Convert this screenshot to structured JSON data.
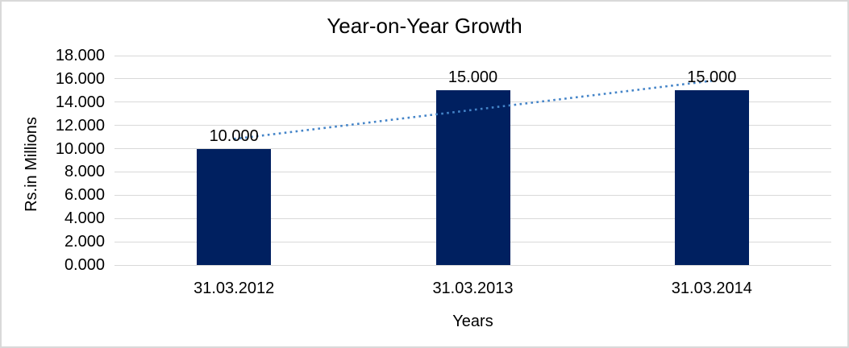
{
  "chart_data": {
    "type": "bar",
    "title": "Year-on-Year Growth",
    "categories": [
      "31.03.2012",
      "31.03.2013",
      "31.03.2014"
    ],
    "values": [
      10,
      15,
      15
    ],
    "data_labels": [
      "10.000",
      "15.000",
      "15.000"
    ],
    "xlabel": "Years",
    "ylabel": "Rs.in Millions",
    "ylim": [
      0,
      18
    ],
    "ytick_step": 2,
    "ytick_labels": [
      "0.000",
      "2.000",
      "4.000",
      "6.000",
      "8.000",
      "10.000",
      "12.000",
      "14.000",
      "16.000",
      "18.000"
    ],
    "grid": true,
    "legend": "none",
    "trendline": {
      "type": "linear",
      "style": "dotted",
      "values": [
        10.833,
        13.333,
        15.833
      ]
    },
    "colors": {
      "bar": "#002060",
      "trendline": "#4484C8",
      "gridline": "#d9d9d9",
      "frame": "#d9d9d9",
      "text": "#000000"
    }
  }
}
